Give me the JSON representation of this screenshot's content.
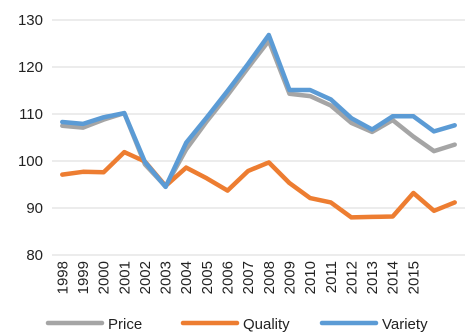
{
  "chart_data": {
    "type": "line",
    "title": "",
    "xlabel": "",
    "ylabel": "",
    "ylim": [
      80,
      130
    ],
    "yticks": [
      "80",
      "90",
      "100",
      "110",
      "120",
      "130"
    ],
    "x": [
      "1998",
      "1999",
      "2000",
      "2001",
      "2002",
      "2003",
      "2004",
      "2005",
      "2006",
      "2007",
      "2008",
      "2009",
      "2010",
      "2011",
      "2012",
      "2013",
      "2014",
      "2015",
      "2016",
      "2017"
    ],
    "xtick_labels": [
      "1998",
      "1999",
      "2000",
      "2001",
      "2002",
      "2003",
      "2004",
      "2005",
      "2006",
      "2007",
      "2008",
      "2009",
      "2010",
      "2011",
      "2012",
      "2013",
      "2014",
      "2015"
    ],
    "grid": "horizontal",
    "legend": "bottom",
    "series": [
      {
        "name": "Price",
        "color": "#a5a5a5",
        "values": [
          107.5,
          107.1,
          108.8,
          110.2,
          99.3,
          94.6,
          102.5,
          108.5,
          114.0,
          119.9,
          125.6,
          114.3,
          113.8,
          111.8,
          108.1,
          106.2,
          108.7,
          105.2,
          102.1,
          103.5
        ]
      },
      {
        "name": "Quality",
        "color": "#ed7d31",
        "values": [
          97.1,
          97.7,
          97.6,
          101.9,
          99.9,
          94.7,
          98.6,
          96.3,
          93.7,
          97.9,
          99.7,
          95.3,
          92.1,
          91.2,
          88.0,
          88.1,
          88.2,
          93.2,
          89.4,
          91.2
        ]
      },
      {
        "name": "Variety",
        "color": "#5b9bd5",
        "values": [
          108.3,
          107.9,
          109.3,
          110.2,
          99.8,
          94.5,
          103.9,
          109.3,
          114.9,
          120.7,
          126.8,
          115.1,
          115.1,
          113.1,
          109.1,
          106.7,
          109.5,
          109.5,
          106.3,
          107.6
        ]
      }
    ]
  }
}
